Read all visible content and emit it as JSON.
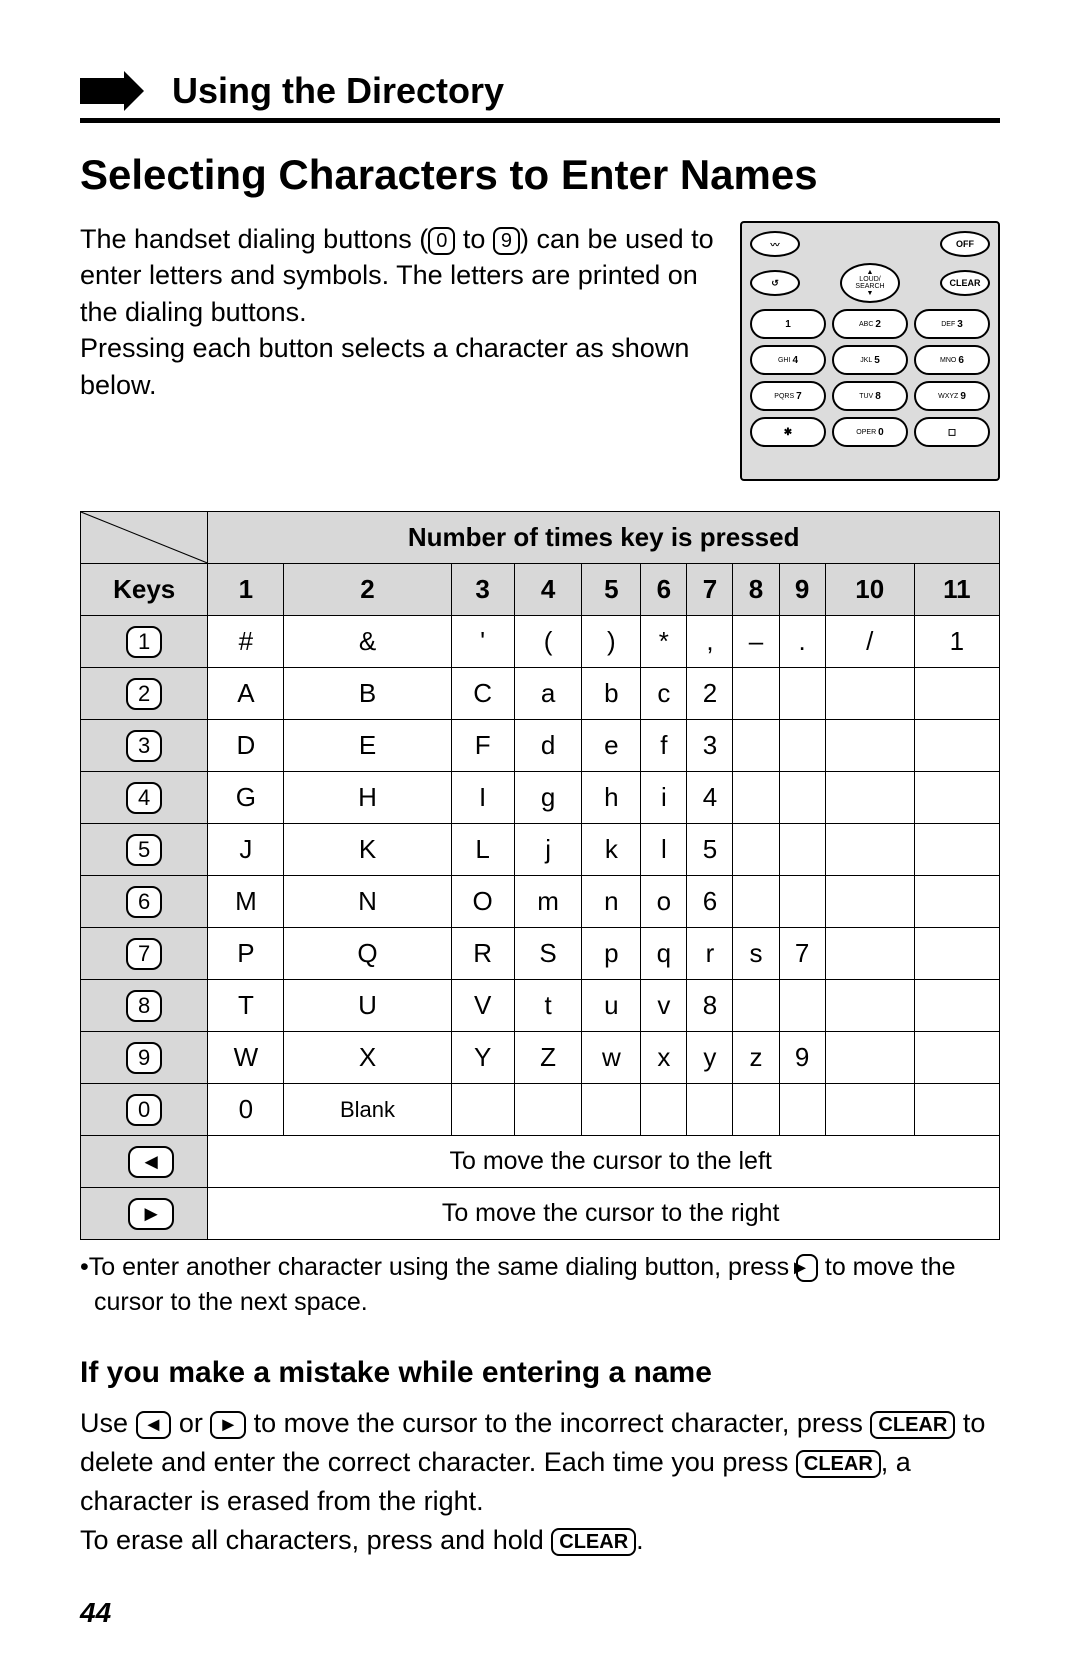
{
  "section_header": "Using the Directory",
  "page_title": "Selecting Characters to Enter Names",
  "intro_a": "The handset dialing buttons (",
  "key0": "0",
  "intro_b": " to ",
  "key9": "9",
  "intro_c": ") can be used to enter letters and symbols. The letters are printed on the dialing buttons.",
  "intro_d": "Pressing each button selects a character as shown below.",
  "table": {
    "header_span": "Number of times key is pressed",
    "key_label": "Keys",
    "cols": [
      "1",
      "2",
      "3",
      "4",
      "5",
      "6",
      "7",
      "8",
      "9",
      "10",
      "11"
    ],
    "rows": [
      {
        "key": "1",
        "cells": [
          "#",
          "&",
          "'",
          "(",
          ")",
          "*",
          ",",
          "–",
          ".",
          "/",
          "1"
        ]
      },
      {
        "key": "2",
        "cells": [
          "A",
          "B",
          "C",
          "a",
          "b",
          "c",
          "2",
          "",
          "",
          "",
          ""
        ]
      },
      {
        "key": "3",
        "cells": [
          "D",
          "E",
          "F",
          "d",
          "e",
          "f",
          "3",
          "",
          "",
          "",
          ""
        ]
      },
      {
        "key": "4",
        "cells": [
          "G",
          "H",
          "I",
          "g",
          "h",
          "i",
          "4",
          "",
          "",
          "",
          ""
        ]
      },
      {
        "key": "5",
        "cells": [
          "J",
          "K",
          "L",
          "j",
          "k",
          "l",
          "5",
          "",
          "",
          "",
          ""
        ]
      },
      {
        "key": "6",
        "cells": [
          "M",
          "N",
          "O",
          "m",
          "n",
          "o",
          "6",
          "",
          "",
          "",
          ""
        ]
      },
      {
        "key": "7",
        "cells": [
          "P",
          "Q",
          "R",
          "S",
          "p",
          "q",
          "r",
          "s",
          "7",
          "",
          ""
        ]
      },
      {
        "key": "8",
        "cells": [
          "T",
          "U",
          "V",
          "t",
          "u",
          "v",
          "8",
          "",
          "",
          "",
          ""
        ]
      },
      {
        "key": "9",
        "cells": [
          "W",
          "X",
          "Y",
          "Z",
          "w",
          "x",
          "y",
          "z",
          "9",
          "",
          ""
        ]
      },
      {
        "key": "0",
        "cells": [
          "0",
          "Blank",
          "",
          "",
          "",
          "",
          "",
          "",
          "",
          "",
          ""
        ]
      }
    ],
    "left_note": "To move the cursor to the left",
    "right_note": "To move the cursor to the right"
  },
  "bullet": "•To enter another character using the same dialing button, press ",
  "bullet_tail": " to move the cursor to the next space.",
  "sub_heading": "If you make a mistake while entering a name",
  "mistake_a": "Use ",
  "mistake_b": " or ",
  "mistake_c": " to move the cursor to the incorrect character, press ",
  "clear_label": "CLEAR",
  "mistake_d": " to delete and enter the correct character. Each time you press ",
  "mistake_e": ", a character is erased from the right.",
  "mistake_f": "To erase all characters, press and hold ",
  "mistake_g": ".",
  "page_number": "44",
  "keypad": {
    "off": "OFF",
    "clear": "CLEAR",
    "nav": "LOUD/\nSEARCH",
    "keys": [
      [
        "",
        "1"
      ],
      [
        "ABC",
        "2"
      ],
      [
        "DEF",
        "3"
      ],
      [
        "GHI",
        "4"
      ],
      [
        "JKL",
        "5"
      ],
      [
        "MNO",
        "6"
      ],
      [
        "PQRS",
        "7"
      ],
      [
        "TUV",
        "8"
      ],
      [
        "WXYZ",
        "9"
      ],
      [
        "",
        "✱"
      ],
      [
        "OPER",
        "0"
      ],
      [
        "",
        "◻"
      ]
    ]
  },
  "colors": {
    "bg": "#ffffff",
    "text": "#000000",
    "shade": "#d8d8d8",
    "keypad_bg": "#dcdcdc"
  }
}
